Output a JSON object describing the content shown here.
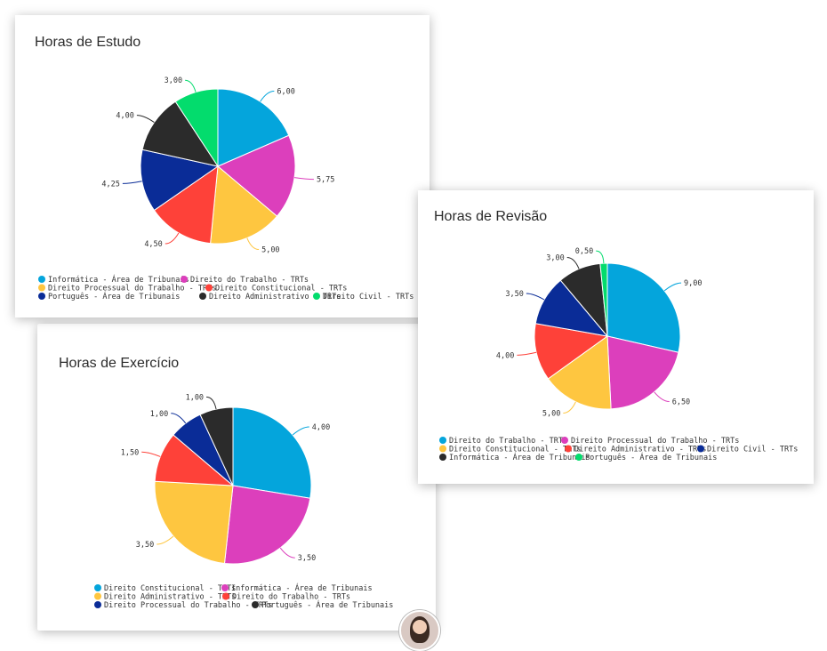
{
  "chart_data": [
    {
      "id": "exercicio",
      "type": "pie",
      "title": "Horas de Exercício",
      "slices": [
        {
          "label": "Direito Constitucional - TRTs",
          "value": 4.0,
          "value_label": "4,00",
          "color": "#04a5dc"
        },
        {
          "label": "Informática - Área de Tribunais",
          "value": 3.5,
          "value_label": "3,50",
          "color": "#dc3fbc"
        },
        {
          "label": "Direito Administrativo - TRTs",
          "value": 3.5,
          "value_label": "3,50",
          "color": "#fec640"
        },
        {
          "label": "Direito do Trabalho - TRTs",
          "value": 1.5,
          "value_label": "1,50",
          "color": "#fe4139"
        },
        {
          "label": "Direito Processual do Trabalho - TRTs",
          "value": 1.0,
          "value_label": "1,00",
          "color": "#0a2c97"
        },
        {
          "label": "Português - Área de Tribunais",
          "value": 1.0,
          "value_label": "1,00",
          "color": "#2b2b2b"
        }
      ],
      "legend_rows": [
        [
          0,
          1
        ],
        [
          2,
          3
        ],
        [
          4,
          5
        ]
      ]
    },
    {
      "id": "estudo",
      "type": "pie",
      "title": "Horas de Estudo",
      "slices": [
        {
          "label": "Informática - Área de Tribunais",
          "value": 6.0,
          "value_label": "6,00",
          "color": "#04a5dc"
        },
        {
          "label": "Direito do Trabalho - TRTs",
          "value": 5.75,
          "value_label": "5,75",
          "color": "#dc3fbc"
        },
        {
          "label": "Direito Processual do Trabalho - TRTs",
          "value": 5.0,
          "value_label": "5,00",
          "color": "#fec640"
        },
        {
          "label": "Direito Constitucional - TRTs",
          "value": 4.5,
          "value_label": "4,50",
          "color": "#fe4139"
        },
        {
          "label": "Português - Área de Tribunais",
          "value": 4.25,
          "value_label": "4,25",
          "color": "#0a2c97"
        },
        {
          "label": "Direito Administrativo - TRTs",
          "value": 4.0,
          "value_label": "4,00",
          "color": "#2b2b2b"
        },
        {
          "label": "Direito Civil - TRTs",
          "value": 3.0,
          "value_label": "3,00",
          "color": "#03dc6d"
        }
      ],
      "legend_rows": [
        [
          0,
          1
        ],
        [
          2,
          3
        ],
        [
          4,
          5,
          6
        ]
      ]
    },
    {
      "id": "revisao",
      "type": "pie",
      "title": "Horas de Revisão",
      "slices": [
        {
          "label": "Direito do Trabalho - TRTs",
          "value": 9.0,
          "value_label": "9,00",
          "color": "#04a5dc"
        },
        {
          "label": "Direito Processual do Trabalho - TRTs",
          "value": 6.5,
          "value_label": "6,50",
          "color": "#dc3fbc"
        },
        {
          "label": "Direito Constitucional - TRTs",
          "value": 5.0,
          "value_label": "5,00",
          "color": "#fec640"
        },
        {
          "label": "Direito Administrativo - TRTs",
          "value": 4.0,
          "value_label": "4,00",
          "color": "#fe4139"
        },
        {
          "label": "Direito Civil - TRTs",
          "value": 3.5,
          "value_label": "3,50",
          "color": "#0a2c97"
        },
        {
          "label": "Informática - Área de Tribunais",
          "value": 3.0,
          "value_label": "3,00",
          "color": "#2b2b2b"
        },
        {
          "label": "Português - Área de Tribunais",
          "value": 0.5,
          "value_label": "0,50",
          "color": "#03dc6d"
        }
      ],
      "legend_rows": [
        [
          0,
          1
        ],
        [
          2,
          3,
          4
        ],
        [
          5,
          6
        ]
      ]
    }
  ]
}
